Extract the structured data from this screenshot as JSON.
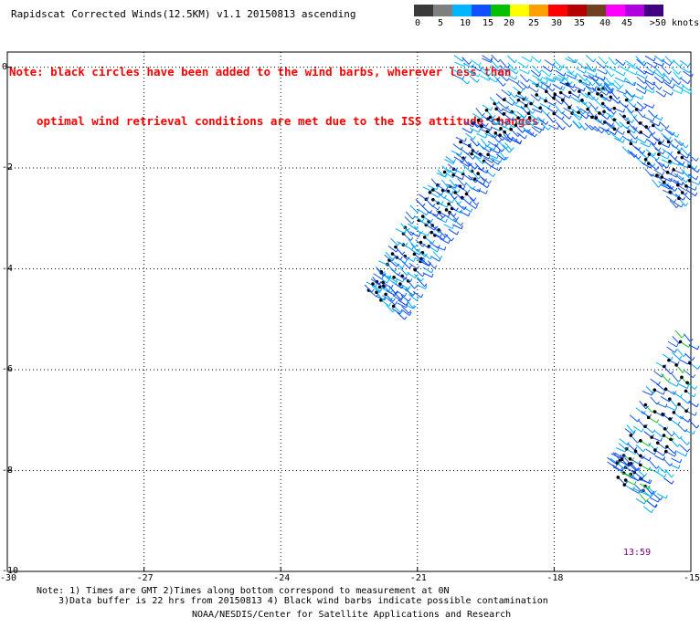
{
  "title": "Rapidscat Corrected Winds(12.5KM) v1.1 20150813 ascending",
  "note": {
    "line1": "Note: black circles have been added to the wind barbs, wherever less than",
    "line2": "optimal wind retrieval conditions are met due to the ISS attitude changes."
  },
  "legend": {
    "labels": [
      "0",
      "5",
      "10",
      "15",
      "20",
      "25",
      "30",
      "35",
      "40",
      "45",
      ">50 knots"
    ],
    "colors": [
      "#3a3a3a",
      "#7f7f7f",
      "#00b4ff",
      "#1050ff",
      "#00c000",
      "#ffff00",
      "#ffa000",
      "#ff0000",
      "#b40000",
      "#704020",
      "#ff00ff",
      "#b000e0",
      "#400080"
    ]
  },
  "map": {
    "x_ticks": [
      "-30",
      "-27",
      "-24",
      "-21",
      "-18",
      "-15"
    ],
    "y_ticks": [
      "0",
      "-2",
      "-4",
      "-6",
      "-8",
      "-10"
    ],
    "lon_range": [
      -30,
      -15
    ],
    "lat_range": [
      -10,
      0.3
    ],
    "time_label": "13:59",
    "swaths": [
      {
        "name": "arc",
        "points": [
          [
            -21.8,
            -4.6
          ],
          [
            -21.5,
            -4.2
          ],
          [
            -21.1,
            -3.5
          ],
          [
            -20.6,
            -2.8
          ],
          [
            -20.1,
            -2.2
          ],
          [
            -19.7,
            -1.5
          ],
          [
            -19.2,
            -1.0
          ],
          [
            -18.5,
            -0.7
          ],
          [
            -17.5,
            -0.6
          ],
          [
            -16.7,
            -0.8
          ],
          [
            -16.0,
            -1.4
          ],
          [
            -15.4,
            -2.0
          ],
          [
            -15.0,
            -2.5
          ]
        ],
        "half_width": 0.45
      },
      {
        "name": "band",
        "points": [
          [
            -14.8,
            -5.5
          ],
          [
            -15.3,
            -6.3
          ],
          [
            -15.8,
            -7.2
          ],
          [
            -16.2,
            -8.0
          ],
          [
            -16.5,
            -8.3
          ]
        ],
        "half_width": 0.6
      },
      {
        "name": "top-fringe",
        "points": [
          [
            -20.2,
            0.2
          ],
          [
            -19.0,
            0.1
          ],
          [
            -17.5,
            0.0
          ],
          [
            -16.2,
            -0.1
          ],
          [
            -15.0,
            -0.1
          ]
        ],
        "half_width": 0.35
      }
    ]
  },
  "footer": {
    "line1": "Note: 1) Times are GMT 2)Times along bottom correspond to measurement at 0N",
    "line2": "3)Data buffer is 22 hrs from 20150813 4) Black wind barbs indicate possible contamination",
    "line3": "NOAA/NESDIS/Center for Satellite Applications and Research"
  }
}
